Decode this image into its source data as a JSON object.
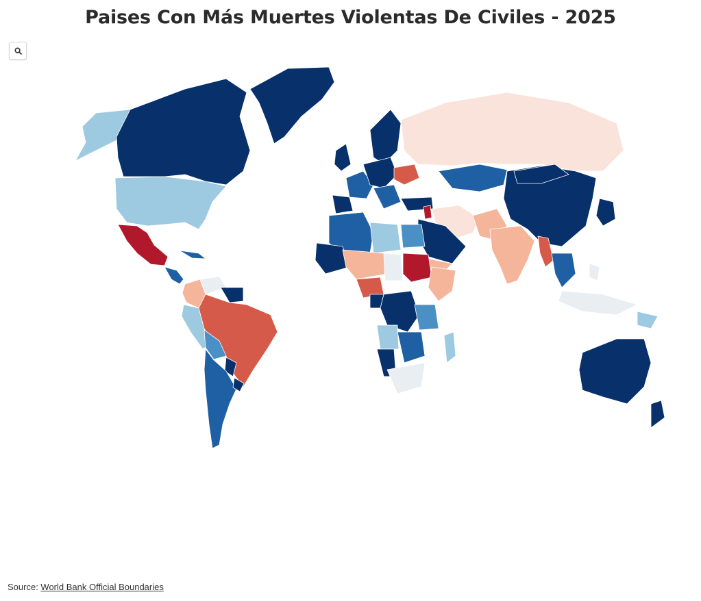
{
  "title": "Paises Con Más Muertes Violentas De Civiles - 2025",
  "search": {
    "icon": "search-icon"
  },
  "source": {
    "prefix": "Source: ",
    "link_text": "World Bank Official Boundaries"
  },
  "palette": {
    "very_low": "#08306b",
    "low": "#1f5fa3",
    "low_mid": "#4a90c4",
    "mid_low": "#9ecae1",
    "neutral": "#e9eef3",
    "mid_high": "#f9e3da",
    "high_light": "#f5b59a",
    "high": "#d65a4a",
    "very_high": "#b2182b"
  }
}
